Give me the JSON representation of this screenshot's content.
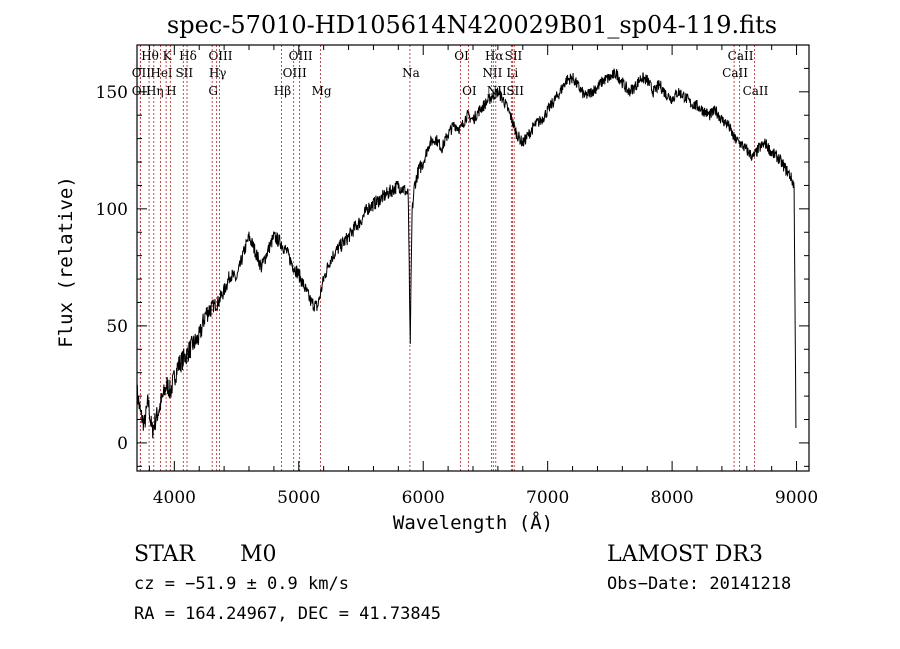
{
  "chart_data": {
    "type": "line",
    "title": "spec-57010-HD105614N420029B01_sp04-119.fits",
    "xlabel": "Wavelength (Å)",
    "ylabel": "Flux (relative)",
    "xlim": [
      3700,
      9100
    ],
    "ylim": [
      -12,
      170
    ],
    "xticks": [
      4000,
      5000,
      6000,
      7000,
      8000,
      9000
    ],
    "yticks": [
      0,
      50,
      100,
      150
    ],
    "grid": false,
    "line_color": "#000000",
    "marker_color": "#b22222",
    "series": [
      {
        "x": [
          3700,
          3730,
          3760,
          3790,
          3820,
          3850,
          3880,
          3910,
          3940,
          3970,
          4000,
          4030,
          4060,
          4100,
          4150,
          4200,
          4250,
          4300,
          4350,
          4400,
          4450,
          4500,
          4550,
          4600,
          4650,
          4700,
          4750,
          4800,
          4850,
          4900,
          4950,
          5000,
          5050,
          5100,
          5150,
          5200,
          5250,
          5300,
          5350,
          5400,
          5450,
          5500,
          5550,
          5600,
          5650,
          5700,
          5750,
          5800,
          5850,
          5880,
          5895,
          5910,
          5930,
          5960,
          6000,
          6050,
          6100,
          6150,
          6200,
          6250,
          6300,
          6350,
          6400,
          6450,
          6500,
          6550,
          6600,
          6650,
          6700,
          6750,
          6800,
          6850,
          6900,
          6950,
          7000,
          7050,
          7100,
          7150,
          7200,
          7250,
          7300,
          7350,
          7400,
          7450,
          7500,
          7550,
          7600,
          7650,
          7700,
          7750,
          7800,
          7850,
          7900,
          7950,
          8000,
          8050,
          8100,
          8150,
          8200,
          8250,
          8300,
          8350,
          8400,
          8450,
          8500,
          8550,
          8600,
          8650,
          8700,
          8750,
          8800,
          8850,
          8900,
          8950,
          8980,
          8995
        ],
        "y": [
          22,
          12,
          8,
          18,
          5,
          10,
          15,
          20,
          25,
          22,
          28,
          33,
          35,
          38,
          42,
          45,
          55,
          58,
          60,
          65,
          72,
          70,
          80,
          88,
          82,
          75,
          82,
          88,
          86,
          82,
          76,
          72,
          66,
          60,
          58,
          70,
          78,
          82,
          85,
          88,
          92,
          95,
          100,
          102,
          104,
          106,
          108,
          110,
          108,
          106,
          40,
          98,
          110,
          116,
          120,
          128,
          130,
          126,
          132,
          136,
          134,
          140,
          138,
          142,
          145,
          148,
          150,
          146,
          140,
          132,
          128,
          132,
          136,
          138,
          142,
          146,
          150,
          155,
          156,
          152,
          148,
          150,
          152,
          155,
          156,
          158,
          154,
          150,
          152,
          156,
          155,
          150,
          153,
          149,
          147,
          150,
          148,
          145,
          144,
          142,
          140,
          142,
          138,
          136,
          130,
          128,
          125,
          122,
          126,
          128,
          124,
          122,
          118,
          114,
          110,
          8
        ]
      }
    ],
    "line_markers": [
      {
        "x": 3797,
        "label": "Hθ",
        "row": 0
      },
      {
        "x": 3727,
        "label": "OII",
        "row": 1
      },
      {
        "x": 3727,
        "label": "OII",
        "row": 2
      },
      {
        "x": 3835,
        "label": "Hη",
        "row": 2
      },
      {
        "x": 3934,
        "label": "K",
        "row": 0
      },
      {
        "x": 3889,
        "label": "HeI",
        "row": 1
      },
      {
        "x": 3968,
        "label": "H",
        "row": 2
      },
      {
        "x": 4102,
        "label": "Hδ",
        "row": 0
      },
      {
        "x": 4072,
        "label": "SII",
        "row": 1
      },
      {
        "x": 4363,
        "label": "OIII",
        "row": 0
      },
      {
        "x": 4340,
        "label": "Hγ",
        "row": 1
      },
      {
        "x": 4304,
        "label": "G",
        "row": 2
      },
      {
        "x": 5007,
        "label": "OIII",
        "row": 0
      },
      {
        "x": 4959,
        "label": "OIII",
        "row": 1
      },
      {
        "x": 4861,
        "label": "Hβ",
        "row": 2
      },
      {
        "x": 5175,
        "label": "Mg",
        "row": 2
      },
      {
        "x": 5893,
        "label": "Na",
        "row": 1
      },
      {
        "x": 6300,
        "label": "OI",
        "row": 0
      },
      {
        "x": 6363,
        "label": "OI",
        "row": 2
      },
      {
        "x": 6563,
        "label": "Hα",
        "row": 0
      },
      {
        "x": 6548,
        "label": "NII",
        "row": 1
      },
      {
        "x": 6583,
        "label": "NII",
        "row": 2
      },
      {
        "x": 6717,
        "label": "SII",
        "row": 0
      },
      {
        "x": 6708,
        "label": "Li",
        "row": 1
      },
      {
        "x": 6731,
        "label": "SII",
        "row": 2
      },
      {
        "x": 8542,
        "label": "CaII",
        "row": 0
      },
      {
        "x": 8498,
        "label": "CaII",
        "row": 1
      },
      {
        "x": 8662,
        "label": "CaII",
        "row": 2
      }
    ]
  },
  "info": {
    "object_class": "STAR",
    "subclass": "M0",
    "survey": "LAMOST DR3",
    "velocity": "cz = −51.9 ± 0.9 km/s",
    "obs_date": "Obs−Date: 20141218",
    "coords": "RA = 164.24967, DEC =  41.73845"
  }
}
